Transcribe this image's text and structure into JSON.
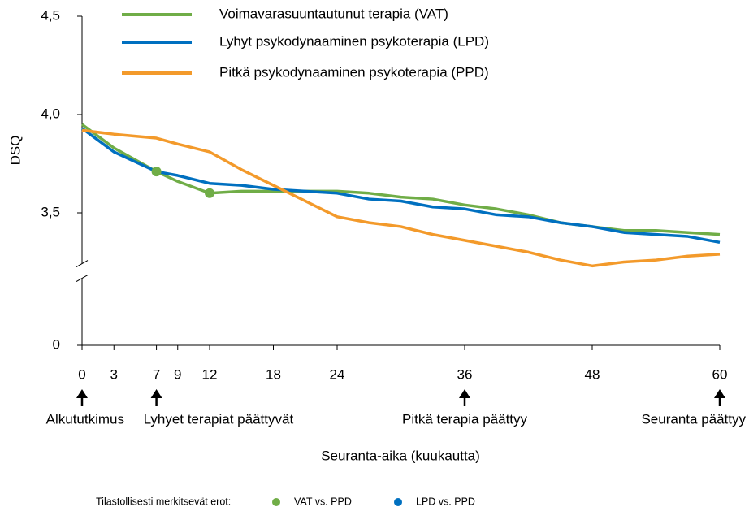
{
  "chart_data": {
    "type": "line",
    "ylabel": "DSQ",
    "xlabel": "Seuranta-aika (kuukautta)",
    "x": [
      0,
      3,
      7,
      9,
      12,
      15,
      18,
      21,
      24,
      27,
      30,
      33,
      36,
      39,
      42,
      45,
      48,
      51,
      54,
      57,
      60
    ],
    "series": [
      {
        "name": "Voimavarasuuntautunut terapia (VAT)",
        "color": "#70ad47",
        "values": [
          3.95,
          3.83,
          3.71,
          3.66,
          3.6,
          3.61,
          3.61,
          3.61,
          3.61,
          3.6,
          3.58,
          3.57,
          3.54,
          3.52,
          3.49,
          3.45,
          3.43,
          3.41,
          3.41,
          3.4,
          3.39
        ]
      },
      {
        "name": "Lyhyt psykodynaaminen psykoterapia (LPD)",
        "color": "#0070c0",
        "values": [
          3.93,
          3.81,
          3.71,
          3.69,
          3.65,
          3.64,
          3.62,
          3.61,
          3.6,
          3.57,
          3.56,
          3.53,
          3.52,
          3.49,
          3.48,
          3.45,
          3.43,
          3.4,
          3.39,
          3.38,
          3.35
        ]
      },
      {
        "name": "Pitkä psykodynaaminen psykoterapia (PPD)",
        "color": "#f39a2b",
        "values": [
          3.92,
          3.9,
          3.88,
          3.85,
          3.81,
          3.72,
          3.64,
          3.56,
          3.48,
          3.45,
          3.43,
          3.39,
          3.36,
          3.33,
          3.3,
          3.26,
          3.23,
          3.25,
          3.26,
          3.28,
          3.29
        ]
      }
    ],
    "markers_title": "Tilastollisesti merkitsevät erot:",
    "markers": [
      {
        "name": "VAT vs. PPD",
        "color": "#70ad47",
        "x": [
          7,
          12
        ],
        "values": [
          3.71,
          3.6
        ]
      },
      {
        "name": "LPD vs. PPD",
        "color": "#0070c0",
        "x": [],
        "values": []
      }
    ],
    "annotations": [
      {
        "text": "Alkututkimus",
        "x": 0
      },
      {
        "text": "Lyhyet terapiat päättyvät",
        "x": 7
      },
      {
        "text": "Pitkä terapia päättyy",
        "x": 36
      },
      {
        "text": "Seuranta päättyy",
        "x": 60
      }
    ],
    "xlim": [
      0,
      60
    ],
    "xticks": [
      0,
      3,
      7,
      9,
      12,
      18,
      24,
      36,
      48,
      60
    ],
    "ylim": [
      0,
      4.5
    ],
    "y_break": [
      0,
      3.2
    ],
    "yticks": [
      0,
      {
        "value": 3.5,
        "label": "3,5"
      },
      {
        "value": 4.0,
        "label": "4,0"
      },
      {
        "value": 4.5,
        "label": "4,5"
      }
    ]
  }
}
